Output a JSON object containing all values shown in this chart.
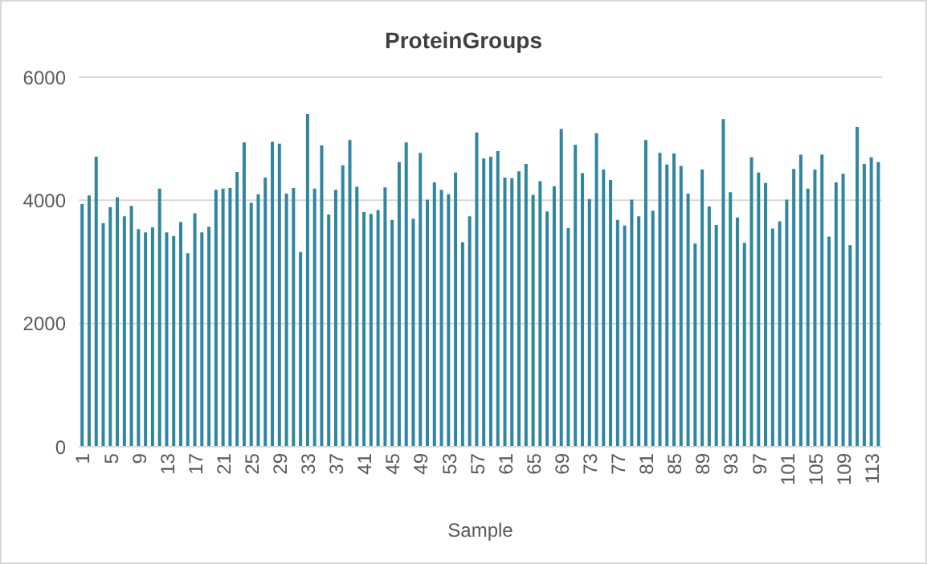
{
  "chart_data": {
    "type": "bar",
    "title": "ProteinGroups",
    "xlabel": "Sample",
    "categories": [
      "1",
      null,
      null,
      null,
      "5",
      null,
      null,
      null,
      "9",
      null,
      null,
      null,
      "13",
      null,
      null,
      null,
      "17",
      null,
      null,
      null,
      "21",
      null,
      null,
      null,
      "25",
      null,
      null,
      null,
      "29",
      null,
      null,
      null,
      "33",
      null,
      null,
      null,
      "37",
      null,
      null,
      null,
      "41",
      null,
      null,
      null,
      "45",
      null,
      null,
      null,
      "49",
      null,
      null,
      null,
      "53",
      null,
      null,
      null,
      "57",
      null,
      null,
      null,
      "61",
      null,
      null,
      null,
      "65",
      null,
      null,
      null,
      "69",
      null,
      null,
      null,
      "73",
      null,
      null,
      null,
      "77",
      null,
      null,
      null,
      "81",
      null,
      null,
      null,
      "85",
      null,
      null,
      null,
      "89",
      null,
      null,
      null,
      "93",
      null,
      null,
      null,
      "97",
      null,
      null,
      null,
      "101",
      null,
      null,
      null,
      "105",
      null,
      null,
      null,
      "109",
      null,
      null,
      null,
      "113",
      null
    ],
    "values": [
      3940,
      4080,
      4710,
      3630,
      3890,
      4050,
      3740,
      3910,
      3530,
      3480,
      3560,
      4190,
      3480,
      3420,
      3650,
      3140,
      3790,
      3480,
      3570,
      4170,
      4190,
      4200,
      4460,
      4940,
      3960,
      4100,
      4370,
      4950,
      4920,
      4110,
      4200,
      3160,
      5400,
      4190,
      4890,
      3770,
      4170,
      4570,
      4980,
      4220,
      3810,
      3780,
      3840,
      4210,
      3680,
      4620,
      4940,
      3700,
      4770,
      4010,
      4290,
      4170,
      4100,
      4450,
      3320,
      3740,
      5100,
      4680,
      4710,
      4800,
      4370,
      4360,
      4470,
      4590,
      4090,
      4310,
      3820,
      4230,
      5160,
      3550,
      4900,
      4440,
      4020,
      5090,
      4500,
      4330,
      3680,
      3590,
      4010,
      3740,
      4980,
      3830,
      4770,
      4580,
      4760,
      4560,
      4110,
      3300,
      4500,
      3900,
      3600,
      5320,
      4130,
      3720,
      3310,
      4700,
      4450,
      4280,
      3540,
      3660,
      4010,
      4510,
      4740,
      4190,
      4500,
      4740,
      3410,
      4290,
      4430,
      3270,
      5190,
      4590,
      4700,
      4620
    ],
    "color": "#2e86a0",
    "ylim": [
      0,
      6000
    ],
    "yticks": [
      0,
      2000,
      4000,
      6000
    ],
    "grid": "y"
  }
}
